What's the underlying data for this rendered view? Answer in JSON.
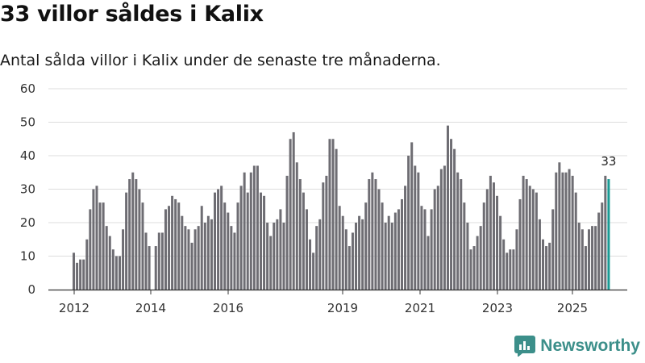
{
  "chart_data": {
    "type": "bar",
    "title": "33 villor såldes i Kalix",
    "subtitle": "Antal sålda villor i Kalix under de senaste tre månaderna.",
    "ylim": [
      0,
      60
    ],
    "yticks": [
      0,
      10,
      20,
      30,
      40,
      50,
      60
    ],
    "xticks": [
      "2012",
      "2014",
      "2016",
      "2019",
      "2021",
      "2023",
      "2025"
    ],
    "ylabel": "",
    "xlabel": "",
    "highlight_label": "33",
    "colors": {
      "bar": "#6e6d73",
      "highlight": "#1a9a94",
      "grid": "#dddddd",
      "axis": "#333333"
    },
    "series": [
      {
        "name": "Antal sålda villor",
        "values": [
          11,
          8,
          9,
          9,
          15,
          24,
          30,
          31,
          26,
          26,
          19,
          16,
          12,
          10,
          10,
          18,
          29,
          33,
          35,
          33,
          30,
          26,
          17,
          13,
          0,
          13,
          17,
          17,
          24,
          25,
          28,
          27,
          26,
          22,
          19,
          18,
          14,
          18,
          19,
          25,
          20,
          22,
          21,
          29,
          30,
          31,
          26,
          23,
          19,
          17,
          26,
          31,
          35,
          29,
          35,
          37,
          37,
          29,
          28,
          20,
          16,
          20,
          21,
          24,
          20,
          34,
          45,
          47,
          38,
          33,
          29,
          24,
          15,
          11,
          19,
          21,
          32,
          34,
          45,
          45,
          42,
          25,
          22,
          18,
          13,
          17,
          20,
          22,
          21,
          26,
          33,
          35,
          33,
          30,
          26,
          20,
          22,
          20,
          23,
          24,
          27,
          31,
          40,
          44,
          37,
          35,
          25,
          24,
          16,
          24,
          30,
          31,
          36,
          37,
          49,
          45,
          42,
          35,
          33,
          26,
          20,
          12,
          13,
          16,
          19,
          26,
          30,
          34,
          32,
          28,
          22,
          15,
          11,
          12,
          12,
          18,
          27,
          34,
          33,
          31,
          30,
          29,
          21,
          15,
          13,
          14,
          24,
          35,
          38,
          35,
          35,
          36,
          34,
          29,
          20,
          18,
          13,
          18,
          19,
          19,
          23,
          26,
          34,
          33
        ]
      }
    ]
  },
  "logo": {
    "text": "Newsworthy"
  }
}
